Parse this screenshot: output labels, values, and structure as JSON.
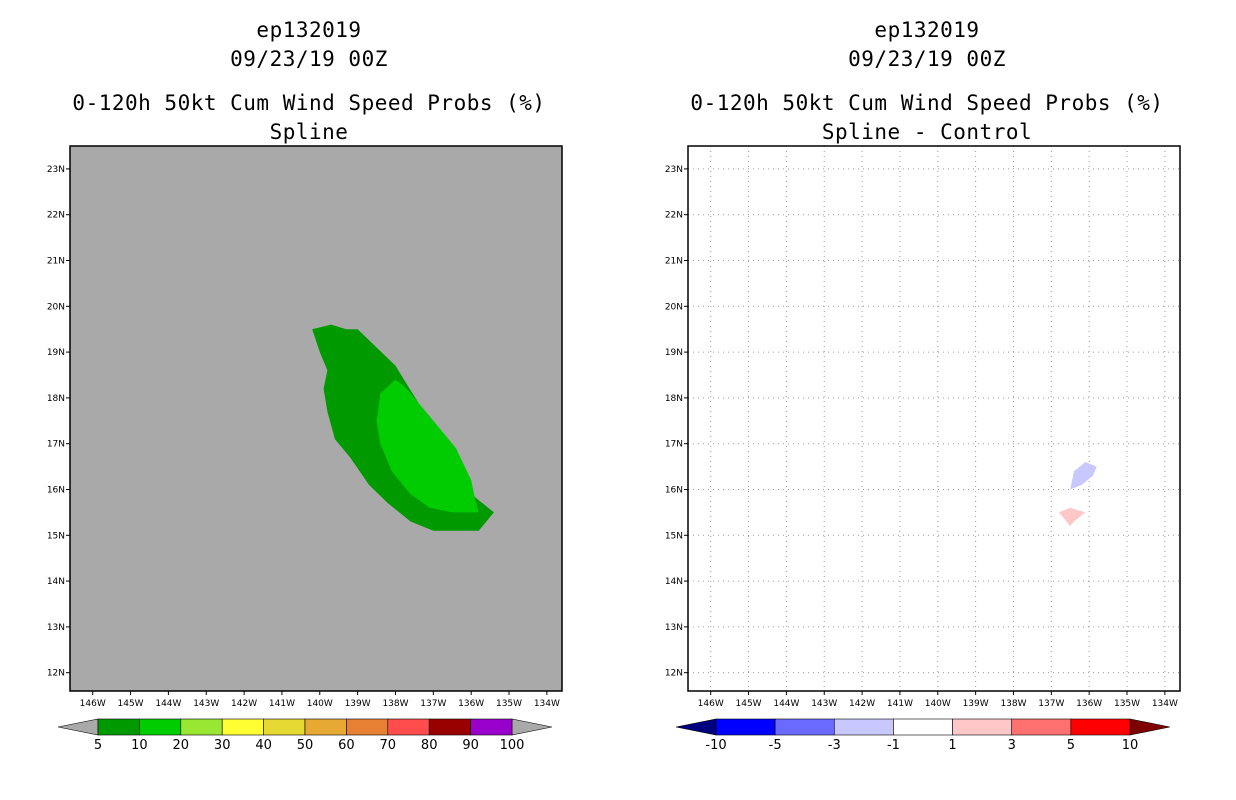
{
  "chart_data": [
    {
      "type": "filled-contour-map",
      "title_lines": [
        "ep132019",
        "09/23/19 00Z",
        "0-120h 50kt Cum Wind Speed Probs (%)",
        "Spline"
      ],
      "background_color": "#a9a9a9",
      "grid": false,
      "x_ticks": [
        "146W",
        "145W",
        "144W",
        "143W",
        "142W",
        "141W",
        "140W",
        "139W",
        "138W",
        "137W",
        "136W",
        "135W",
        "134W"
      ],
      "y_ticks": [
        "23N",
        "22N",
        "21N",
        "20N",
        "19N",
        "18N",
        "17N",
        "16N",
        "15N",
        "14N",
        "13N",
        "12N"
      ],
      "xlim_lon_west": [
        146.6,
        133.6
      ],
      "ylim_lat": [
        11.6,
        23.5
      ],
      "contours": [
        {
          "level": 5,
          "color": "#009900",
          "outline": [
            [
              140.2,
              19.5
            ],
            [
              139.7,
              19.6
            ],
            [
              139.3,
              19.5
            ],
            [
              139.0,
              19.5
            ],
            [
              138.5,
              19.1
            ],
            [
              138.0,
              18.7
            ],
            [
              137.7,
              18.3
            ],
            [
              137.4,
              17.9
            ],
            [
              137.0,
              17.3
            ],
            [
              136.5,
              16.6
            ],
            [
              136.0,
              15.9
            ],
            [
              135.4,
              15.5
            ],
            [
              135.8,
              15.1
            ],
            [
              136.4,
              15.1
            ],
            [
              137.0,
              15.1
            ],
            [
              137.6,
              15.3
            ],
            [
              138.2,
              15.7
            ],
            [
              138.7,
              16.1
            ],
            [
              139.2,
              16.7
            ],
            [
              139.6,
              17.1
            ],
            [
              139.8,
              17.7
            ],
            [
              139.9,
              18.2
            ],
            [
              139.8,
              18.6
            ],
            [
              140.0,
              19.0
            ]
          ]
        },
        {
          "level": 10,
          "color": "#00cc00",
          "outline": [
            [
              138.0,
              18.4
            ],
            [
              138.4,
              18.1
            ],
            [
              138.5,
              17.5
            ],
            [
              138.4,
              17.0
            ],
            [
              138.1,
              16.4
            ],
            [
              137.6,
              15.9
            ],
            [
              137.1,
              15.6
            ],
            [
              136.5,
              15.5
            ],
            [
              135.8,
              15.5
            ],
            [
              135.9,
              15.8
            ],
            [
              136.0,
              16.2
            ],
            [
              136.4,
              16.9
            ],
            [
              136.8,
              17.3
            ],
            [
              137.3,
              17.8
            ],
            [
              137.7,
              18.2
            ]
          ]
        }
      ],
      "colorbar": {
        "labels": [
          "5",
          "10",
          "20",
          "30",
          "40",
          "50",
          "60",
          "70",
          "80",
          "90",
          "100"
        ],
        "colors": [
          "#009900",
          "#00cc00",
          "#99e633",
          "#ffff33",
          "#e6d933",
          "#e6a933",
          "#e68033",
          "#ff4d4d",
          "#990000",
          "#9900cc"
        ],
        "under_color": "#a9a9a9",
        "over_color": "#a9a9a9"
      }
    },
    {
      "type": "filled-contour-map",
      "title_lines": [
        "ep132019",
        "09/23/19 00Z",
        "0-120h 50kt Cum Wind Speed Probs (%)",
        "Spline - Control"
      ],
      "background_color": "#ffffff",
      "grid": true,
      "x_ticks": [
        "146W",
        "145W",
        "144W",
        "143W",
        "142W",
        "141W",
        "140W",
        "139W",
        "138W",
        "137W",
        "136W",
        "135W",
        "134W"
      ],
      "y_ticks": [
        "23N",
        "22N",
        "21N",
        "20N",
        "19N",
        "18N",
        "17N",
        "16N",
        "15N",
        "14N",
        "13N",
        "12N"
      ],
      "xlim_lon_west": [
        146.6,
        133.6
      ],
      "ylim_lat": [
        11.6,
        23.5
      ],
      "contours": [
        {
          "level": -3,
          "color": "#c8c8ff",
          "outline": [
            [
              136.5,
              16.0
            ],
            [
              136.4,
              16.4
            ],
            [
              136.1,
              16.6
            ],
            [
              135.8,
              16.5
            ],
            [
              135.9,
              16.3
            ],
            [
              136.2,
              16.1
            ]
          ]
        },
        {
          "level": 3,
          "color": "#ffc8c8",
          "outline": [
            [
              136.8,
              15.5
            ],
            [
              136.5,
              15.6
            ],
            [
              136.1,
              15.5
            ],
            [
              136.4,
              15.3
            ],
            [
              136.5,
              15.2
            ]
          ]
        }
      ],
      "colorbar": {
        "labels": [
          "-10",
          "-5",
          "-3",
          "-1",
          "1",
          "3",
          "5",
          "10"
        ],
        "colors": [
          "#0000ff",
          "#6a6aff",
          "#c8c8ff",
          "#ffffff",
          "#ffc8c8",
          "#ff7070",
          "#ff0000"
        ],
        "under_color": "#00007f",
        "over_color": "#7f0000"
      }
    }
  ]
}
